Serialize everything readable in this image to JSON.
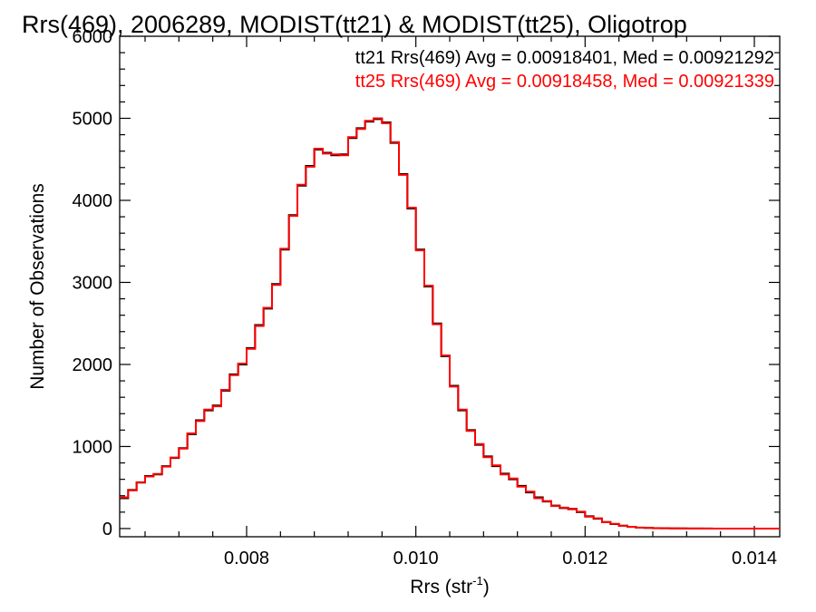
{
  "chart_data": {
    "type": "line",
    "title": "Rrs(469), 2006289, MODIST(tt21) & MODIST(tt25), Oligotrop",
    "xlabel": "Rrs (str",
    "xlabel_sup": "-1",
    "xlabel_close": ")",
    "ylabel": "Number of Observations",
    "xlim": [
      0.0065,
      0.0143
    ],
    "ylim": [
      -100,
      6000
    ],
    "x_ticks": [
      0.008,
      0.01,
      0.012,
      0.014
    ],
    "x_tick_labels": [
      "0.008",
      "0.010",
      "0.012",
      "0.014"
    ],
    "y_ticks": [
      0,
      1000,
      2000,
      3000,
      4000,
      5000,
      6000
    ],
    "y_tick_labels": [
      "0",
      "1000",
      "2000",
      "3000",
      "4000",
      "5000",
      "6000"
    ],
    "grid": false,
    "step_style": "histogram",
    "annotations": [
      {
        "text": "tt21 Rrs(469) Avg = 0.00918401, Med = 0.00921292",
        "color": "#000000"
      },
      {
        "text": "tt25 Rrs(469) Avg = 0.00918458, Med = 0.00921339",
        "color": "#ff0000"
      }
    ],
    "series": [
      {
        "name": "tt21",
        "color": "#000000",
        "x": [
          0.0065,
          0.0066,
          0.0067,
          0.0068,
          0.0069,
          0.007,
          0.0071,
          0.0072,
          0.0073,
          0.0074,
          0.0075,
          0.0076,
          0.0077,
          0.0078,
          0.0079,
          0.008,
          0.0081,
          0.0082,
          0.0083,
          0.0084,
          0.0085,
          0.0086,
          0.0087,
          0.0088,
          0.0089,
          0.009,
          0.0091,
          0.0092,
          0.0093,
          0.0094,
          0.0095,
          0.0096,
          0.0097,
          0.0098,
          0.0099,
          0.01,
          0.0101,
          0.0102,
          0.0103,
          0.0104,
          0.0105,
          0.0106,
          0.0107,
          0.0108,
          0.0109,
          0.011,
          0.0111,
          0.0112,
          0.0113,
          0.0114,
          0.0115,
          0.0116,
          0.0117,
          0.0118,
          0.0119,
          0.012,
          0.0121,
          0.0122,
          0.0123,
          0.0124,
          0.0125,
          0.0126,
          0.0127,
          0.0128,
          0.0129,
          0.013,
          0.0131,
          0.0132,
          0.0133,
          0.0134,
          0.0135,
          0.0136,
          0.0137,
          0.0138,
          0.0139,
          0.014,
          0.0141,
          0.0142,
          0.0143
        ],
        "y": [
          370,
          470,
          560,
          640,
          660,
          760,
          860,
          980,
          1150,
          1320,
          1440,
          1500,
          1680,
          1880,
          2000,
          2200,
          2480,
          2680,
          2980,
          3400,
          3820,
          4180,
          4420,
          4620,
          4580,
          4550,
          4560,
          4760,
          4880,
          4960,
          4990,
          4950,
          4700,
          4320,
          3900,
          3400,
          2950,
          2500,
          2100,
          1740,
          1440,
          1200,
          1020,
          880,
          760,
          670,
          600,
          520,
          440,
          380,
          330,
          280,
          250,
          240,
          200,
          150,
          120,
          80,
          55,
          35,
          20,
          12,
          8,
          5,
          3,
          2,
          2,
          1,
          1,
          1,
          0,
          0,
          0,
          0,
          0,
          0,
          0,
          0,
          0
        ]
      },
      {
        "name": "tt25",
        "color": "#ff0000",
        "x": [
          0.0065,
          0.0066,
          0.0067,
          0.0068,
          0.0069,
          0.007,
          0.0071,
          0.0072,
          0.0073,
          0.0074,
          0.0075,
          0.0076,
          0.0077,
          0.0078,
          0.0079,
          0.008,
          0.0081,
          0.0082,
          0.0083,
          0.0084,
          0.0085,
          0.0086,
          0.0087,
          0.0088,
          0.0089,
          0.009,
          0.0091,
          0.0092,
          0.0093,
          0.0094,
          0.0095,
          0.0096,
          0.0097,
          0.0098,
          0.0099,
          0.01,
          0.0101,
          0.0102,
          0.0103,
          0.0104,
          0.0105,
          0.0106,
          0.0107,
          0.0108,
          0.0109,
          0.011,
          0.0111,
          0.0112,
          0.0113,
          0.0114,
          0.0115,
          0.0116,
          0.0117,
          0.0118,
          0.0119,
          0.012,
          0.0121,
          0.0122,
          0.0123,
          0.0124,
          0.0125,
          0.0126,
          0.0127,
          0.0128,
          0.0129,
          0.013,
          0.0131,
          0.0132,
          0.0133,
          0.0134,
          0.0135,
          0.0136,
          0.0137,
          0.0138,
          0.0139,
          0.014,
          0.0141,
          0.0142,
          0.0143
        ],
        "y": [
          380,
          465,
          565,
          635,
          665,
          755,
          865,
          975,
          1160,
          1310,
          1450,
          1490,
          1690,
          1870,
          2010,
          2190,
          2470,
          2690,
          2970,
          3410,
          3810,
          4190,
          4410,
          4630,
          4570,
          4560,
          4550,
          4770,
          4870,
          4970,
          5000,
          4940,
          4710,
          4310,
          3910,
          3390,
          2960,
          2490,
          2110,
          1730,
          1450,
          1190,
          1030,
          870,
          770,
          660,
          610,
          510,
          450,
          370,
          335,
          275,
          255,
          235,
          205,
          145,
          125,
          78,
          57,
          33,
          22,
          11,
          9,
          4,
          3,
          2,
          1,
          1,
          1,
          0,
          0,
          0,
          0,
          0,
          0,
          0,
          0,
          0,
          0
        ]
      }
    ]
  }
}
